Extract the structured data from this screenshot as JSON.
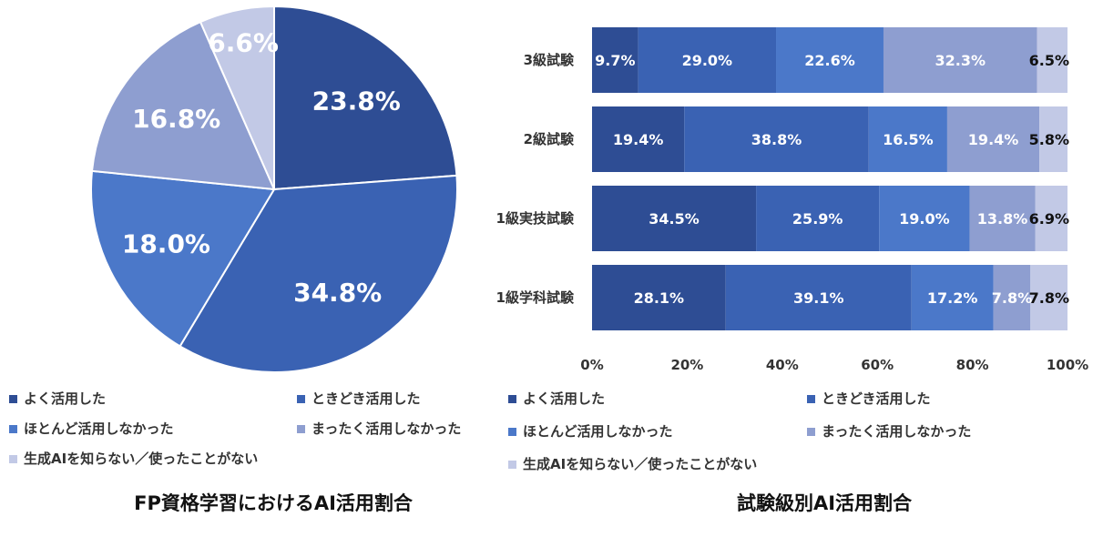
{
  "colors": [
    "#2E4D94",
    "#3A62B3",
    "#4B78C9",
    "#8E9ED0",
    "#C2C9E6"
  ],
  "legend": [
    "よく活用した",
    "ときどき活用した",
    "ほとんど活用しなかった",
    "まったく活用しなかった",
    "生成AIを知らない／使ったことがない"
  ],
  "chart_data": [
    {
      "type": "pie",
      "title": "FP資格学習におけるAI活用割合",
      "slices": [
        {
          "name": "よく活用した",
          "value": 23.8,
          "label": "23.8%"
        },
        {
          "name": "ときどき活用した",
          "value": 34.8,
          "label": "34.8%"
        },
        {
          "name": "ほとんど活用しなかった",
          "value": 18.0,
          "label": "18.0%"
        },
        {
          "name": "まったく活用しなかった",
          "value": 16.8,
          "label": "16.8%"
        },
        {
          "name": "生成AIを知らない／使ったことがない",
          "value": 6.6,
          "label": "6.6%"
        }
      ],
      "legend_position": "bottom"
    },
    {
      "type": "bar",
      "orientation": "horizontal",
      "stacked": true,
      "title": "試験級別AI活用割合",
      "categories": [
        "3級試験",
        "2級試験",
        "1級実技試験",
        "1級学科試験"
      ],
      "series": [
        {
          "name": "よく活用した",
          "values": [
            9.7,
            19.4,
            34.5,
            28.1
          ],
          "labels": [
            "9.7%",
            "19.4%",
            "34.5%",
            "28.1%"
          ]
        },
        {
          "name": "ときどき活用した",
          "values": [
            29.0,
            38.8,
            25.9,
            39.1
          ],
          "labels": [
            "29.0%",
            "38.8%",
            "25.9%",
            "39.1%"
          ]
        },
        {
          "name": "ほとんど活用しなかった",
          "values": [
            22.6,
            16.5,
            19.0,
            17.2
          ],
          "labels": [
            "22.6%",
            "16.5%",
            "19.0%",
            "17.2%"
          ]
        },
        {
          "name": "まったく活用しなかった",
          "values": [
            32.3,
            19.4,
            13.8,
            7.8
          ],
          "labels": [
            "32.3%",
            "19.4%",
            "13.8%",
            "7.8%"
          ]
        },
        {
          "name": "生成AIを知らない／使ったことがない",
          "values": [
            6.5,
            5.8,
            6.9,
            7.8
          ],
          "labels": [
            "6.5%",
            "5.8%",
            "6.9%",
            "7.8%"
          ]
        }
      ],
      "xlim": [
        0,
        100
      ],
      "xticks": [
        "0%",
        "20%",
        "40%",
        "60%",
        "80%",
        "100%"
      ],
      "grid": false,
      "legend_position": "bottom"
    }
  ]
}
